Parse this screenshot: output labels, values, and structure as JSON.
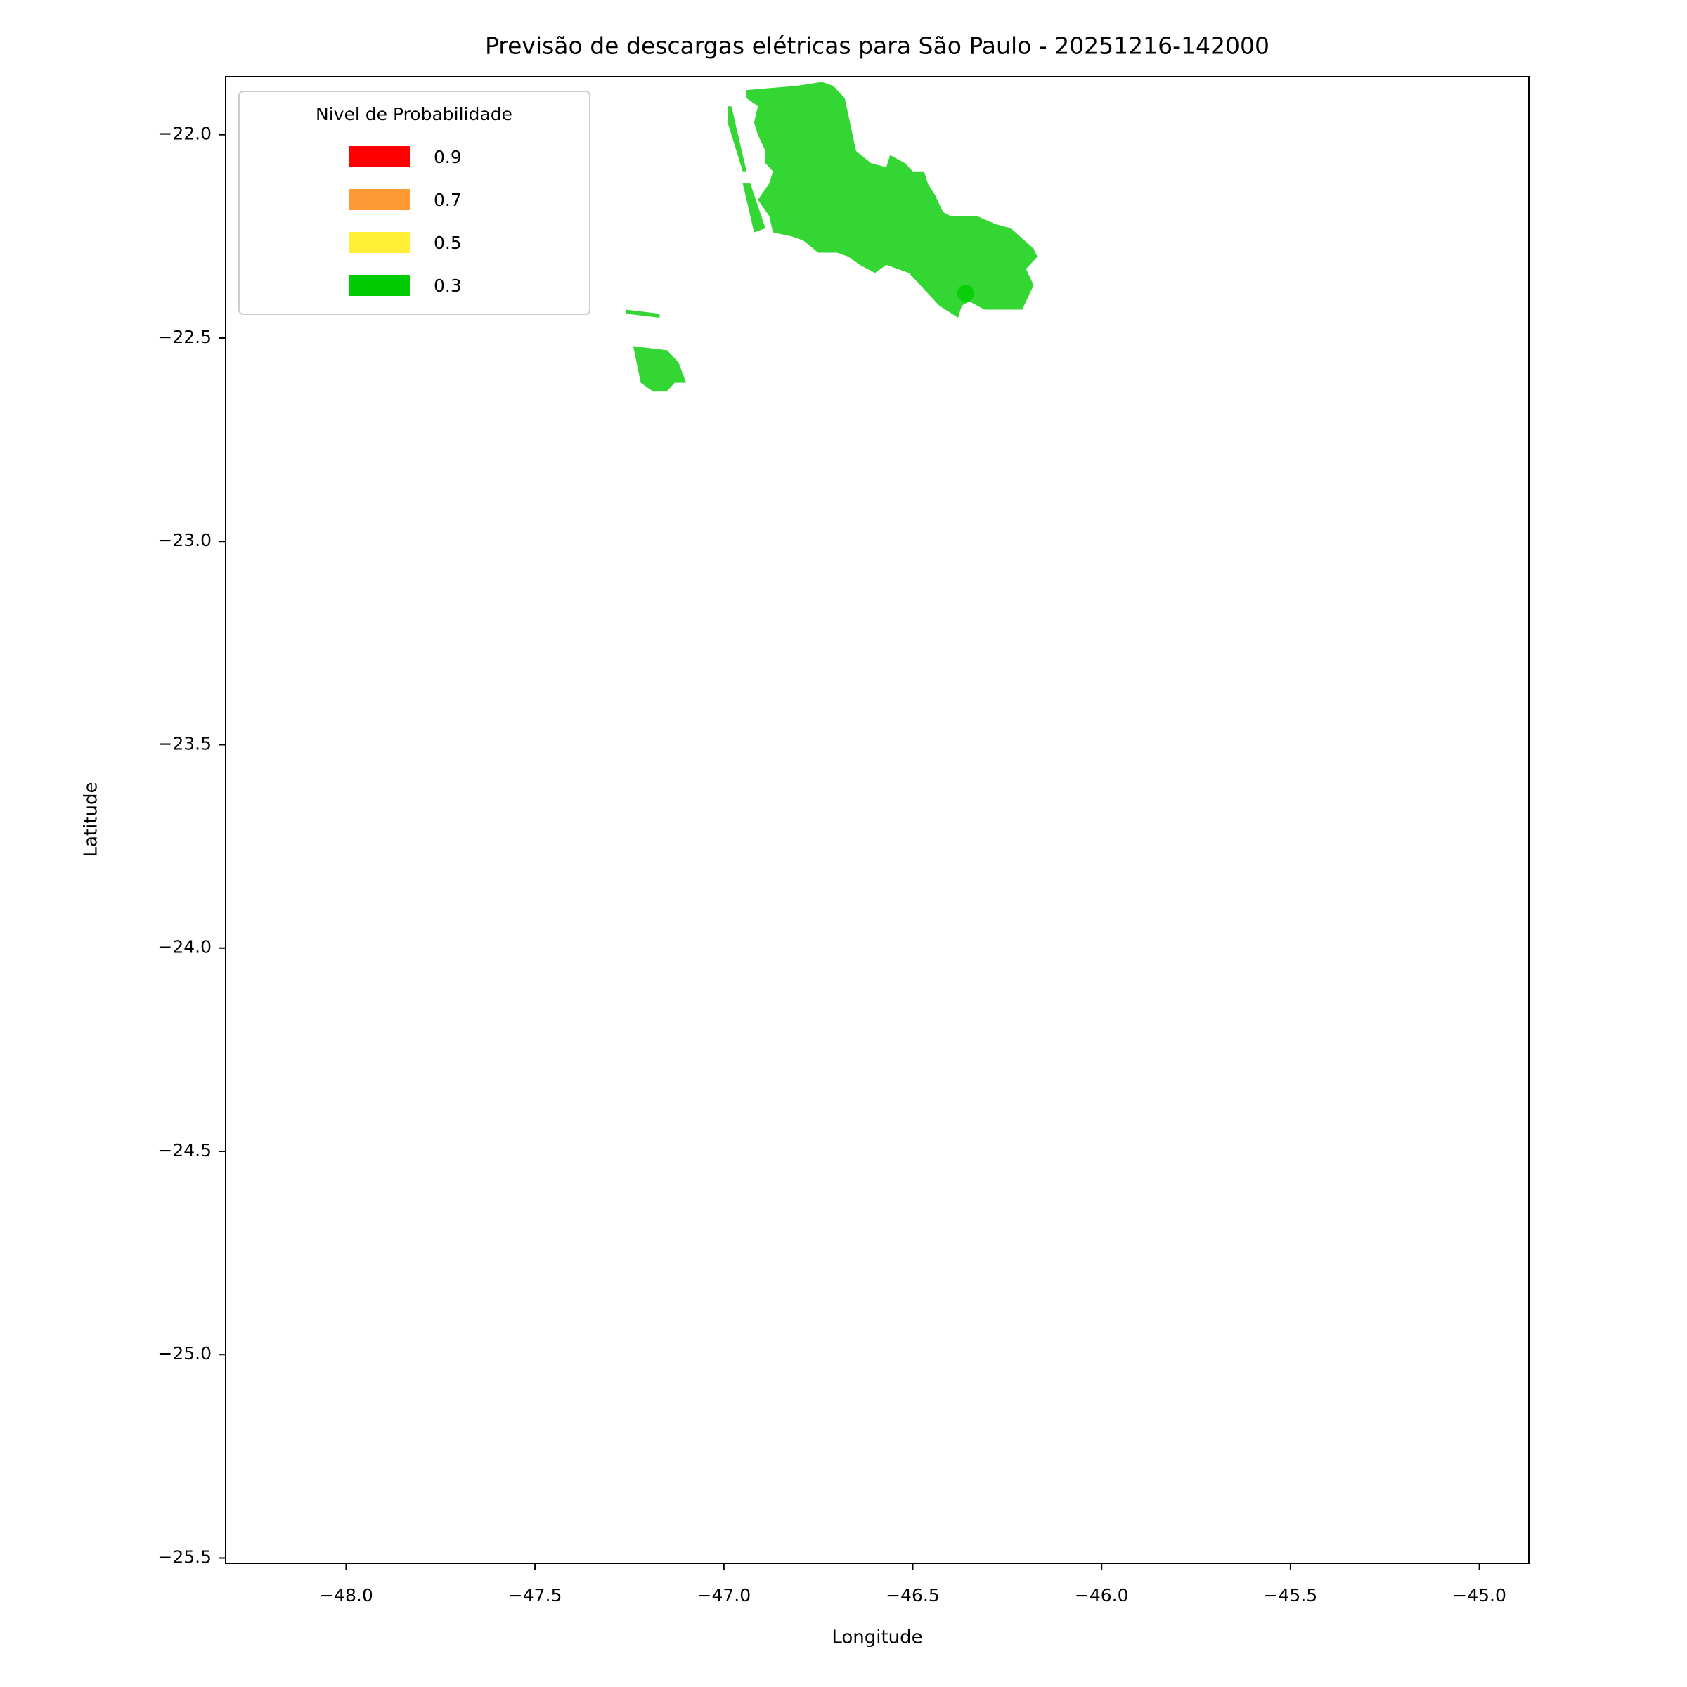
{
  "chart_data": {
    "type": "map",
    "title": "Previsão de descargas elétricas para São Paulo - 20251216-142000",
    "xlabel": "Longitude",
    "ylabel": "Latitude",
    "xlim": [
      -48.319,
      -44.869
    ],
    "ylim": [
      -25.513,
      -21.857
    ],
    "xticks": [
      {
        "value": -48.0,
        "label": "−48.0"
      },
      {
        "value": -47.5,
        "label": "−47.5"
      },
      {
        "value": -47.0,
        "label": "−47.0"
      },
      {
        "value": -46.5,
        "label": "−46.5"
      },
      {
        "value": -46.0,
        "label": "−46.0"
      },
      {
        "value": -45.5,
        "label": "−45.5"
      },
      {
        "value": -45.0,
        "label": "−45.0"
      }
    ],
    "yticks": [
      {
        "value": -22.0,
        "label": "−22.0"
      },
      {
        "value": -22.5,
        "label": "−22.5"
      },
      {
        "value": -23.0,
        "label": "−23.0"
      },
      {
        "value": -23.5,
        "label": "−23.5"
      },
      {
        "value": -24.0,
        "label": "−24.0"
      },
      {
        "value": -24.5,
        "label": "−24.5"
      },
      {
        "value": -25.0,
        "label": "−25.0"
      },
      {
        "value": -25.5,
        "label": "−25.5"
      }
    ],
    "legend_title": "Nivel de Probabilidade",
    "legend_loc": "upper left",
    "alpha": 0.8,
    "series": [
      {
        "name": "0.9",
        "color": "#ff0000"
      },
      {
        "name": "0.7",
        "color": "#ff9933"
      },
      {
        "name": "0.5",
        "color": "#ffee33"
      },
      {
        "name": "0.3",
        "color": "#00cc00",
        "polygons": [
          {
            "lon": [
              -46.94,
              -46.81,
              -46.74,
              -46.71,
              -46.68,
              -46.65,
              -46.61,
              -46.57,
              -46.56,
              -46.52,
              -46.5,
              -46.47,
              -46.46,
              -46.44,
              -46.42,
              -46.4,
              -46.33,
              -46.28,
              -46.24,
              -46.18,
              -46.17,
              -46.2,
              -46.18,
              -46.2,
              -46.21,
              -46.31,
              -46.35,
              -46.37,
              -46.38,
              -46.43,
              -46.48,
              -46.51,
              -46.57,
              -46.6,
              -46.64,
              -46.67,
              -46.7,
              -46.75,
              -46.79,
              -46.82,
              -46.87,
              -46.88,
              -46.91,
              -46.88,
              -46.87,
              -46.89,
              -46.89,
              -46.91,
              -46.92,
              -46.91,
              -46.94
            ],
            "lat": [
              -21.89,
              -21.88,
              -21.87,
              -21.88,
              -21.91,
              -22.04,
              -22.07,
              -22.08,
              -22.05,
              -22.07,
              -22.09,
              -22.09,
              -22.12,
              -22.15,
              -22.19,
              -22.2,
              -22.2,
              -22.22,
              -22.23,
              -22.28,
              -22.3,
              -22.33,
              -22.37,
              -22.41,
              -22.43,
              -22.43,
              -22.41,
              -22.42,
              -22.45,
              -22.42,
              -22.37,
              -22.34,
              -22.32,
              -22.34,
              -22.32,
              -22.3,
              -22.29,
              -22.29,
              -22.26,
              -22.25,
              -22.24,
              -22.2,
              -22.16,
              -22.12,
              -22.09,
              -22.07,
              -22.04,
              -22.0,
              -21.97,
              -21.93,
              -21.91
            ]
          },
          {
            "lon": [
              -46.95,
              -46.93,
              -46.89,
              -46.92
            ],
            "lat": [
              -22.12,
              -22.12,
              -22.23,
              -22.24
            ]
          },
          {
            "lon": [
              -46.99,
              -46.98,
              -46.96,
              -46.94,
              -46.95,
              -46.97,
              -46.99
            ],
            "lat": [
              -21.93,
              -21.93,
              -22.01,
              -22.09,
              -22.09,
              -22.03,
              -21.97
            ]
          },
          {
            "lon": [
              -47.26,
              -47.17,
              -47.17,
              -47.26
            ],
            "lat": [
              -22.43,
              -22.44,
              -22.45,
              -22.44
            ]
          },
          {
            "lon": [
              -47.24,
              -47.15,
              -47.12,
              -47.1,
              -47.13,
              -47.15,
              -47.19,
              -47.22
            ],
            "lat": [
              -22.52,
              -22.53,
              -22.56,
              -22.61,
              -22.61,
              -22.63,
              -22.63,
              -22.61
            ]
          }
        ],
        "points": {
          "lon": [
            -46.36
          ],
          "lat": [
            -22.39
          ]
        }
      }
    ]
  }
}
